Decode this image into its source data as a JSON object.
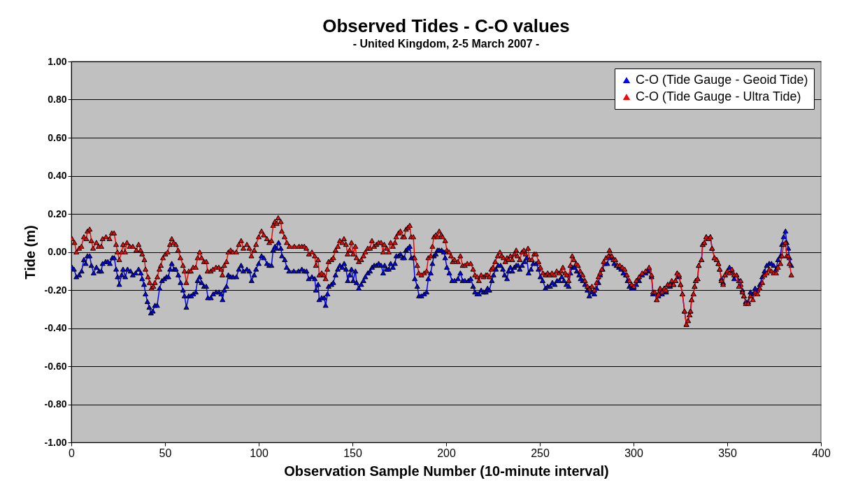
{
  "chart_data": {
    "type": "line",
    "title": "Observed Tides - C-O values",
    "subtitle": "- United Kingdom, 2-5 March 2007 -",
    "xlabel": "Observation Sample Number (10-minute interval)",
    "ylabel": "Tide (m)",
    "xlim": [
      0,
      400
    ],
    "xticks": [
      0,
      50,
      100,
      150,
      200,
      250,
      300,
      350,
      400
    ],
    "ylim": [
      -1,
      1
    ],
    "yticks": [
      {
        "value": -1,
        "label": "-1.00"
      },
      {
        "value": -0.8,
        "label": "-0.80"
      },
      {
        "value": -0.6,
        "label": "-0.60"
      },
      {
        "value": -0.4,
        "label": "-0.40"
      },
      {
        "value": -0.2,
        "label": "-0.20"
      },
      {
        "value": 0,
        "label": "0.00"
      },
      {
        "value": 0.2,
        "label": "0.20"
      },
      {
        "value": 0.4,
        "label": "0.40"
      },
      {
        "value": 0.6,
        "label": "0.60"
      },
      {
        "value": 0.8,
        "label": "0.80"
      },
      {
        "value": 1,
        "label": "1.00"
      }
    ],
    "grid": "y",
    "legend": "top right",
    "marker": "triangle",
    "series": [
      {
        "name": "C-O (Tide Gauge - Geoid Tide)",
        "color": "#0000ff",
        "x": [
          0.4,
          1.4,
          2.7,
          4.2,
          5.5,
          6.7,
          7.7,
          8.6,
          9.8,
          10.7,
          11.9,
          13.4,
          14.8,
          16,
          16.7,
          18.3,
          19.5,
          20.6,
          21.9,
          22.9,
          23.9,
          24.7,
          25.6,
          26.9,
          27.6,
          28.8,
          30,
          31.6,
          32.8,
          34.3,
          35.9,
          37.1,
          37.8,
          38.8,
          39.6,
          40.6,
          41.6,
          42.5,
          43.5,
          44.6,
          45.8,
          47.1,
          48.4,
          49.6,
          50.8,
          51.8,
          52.7,
          53.6,
          54.8,
          55.8,
          57.1,
          58.3,
          59.6,
          60.4,
          61.4,
          62.7,
          63.9,
          65.1,
          66.4,
          67.4,
          68.5,
          69.5,
          70.8,
          72,
          72.9,
          74.5,
          75.7,
          77.2,
          78.8,
          80,
          80.7,
          81.6,
          82.8,
          83.8,
          85.1,
          86.3,
          88.1,
          89.4,
          90.6,
          91.8,
          93.7,
          95,
          96.2,
          97.6,
          98.6,
          100,
          101.5,
          102.7,
          104.4,
          105.6,
          106.8,
          107.7,
          108.7,
          109.6,
          110.6,
          111.8,
          112.4,
          113.9,
          114.9,
          116.2,
          118.7,
          121.2,
          123,
          124.3,
          125.5,
          126.7,
          128.4,
          129.9,
          130.5,
          131.7,
          132.3,
          133.6,
          134.9,
          135.7,
          136.7,
          137.3,
          138.8,
          139.8,
          141,
          142.2,
          143.3,
          144.6,
          145.6,
          146.6,
          147.5,
          148.5,
          149.5,
          150.4,
          151.6,
          152.2,
          153.4,
          154.7,
          155.9,
          156.9,
          158.2,
          159.4,
          160.5,
          161.6,
          162.8,
          164,
          165.3,
          166.4,
          167.2,
          168.3,
          169.4,
          170.4,
          171.6,
          172.7,
          173.4,
          174.6,
          175.6,
          176.9,
          177.7,
          178.6,
          179.6,
          180.6,
          181.4,
          182.5,
          183.3,
          184.6,
          185.5,
          186.8,
          188.3,
          189.6,
          190.5,
          191.8,
          192.7,
          193.5,
          194.5,
          195.4,
          196.3,
          197.6,
          198.8,
          199.5,
          200.4,
          201.7,
          203.2,
          204.5,
          206.3,
          207.6,
          208.8,
          210,
          211.9,
          213.1,
          214.4,
          215.4,
          216.6,
          217.5,
          218.7,
          220,
          221.2,
          222.1,
          223.1,
          224.4,
          225.3,
          226.6,
          227.8,
          229.1,
          230.3,
          231.2,
          232.5,
          233.3,
          234.3,
          235.3,
          236.4,
          237.4,
          238.4,
          239.3,
          240.5,
          241.8,
          243,
          244,
          245.3,
          246.5,
          248,
          249.3,
          250.3,
          251.5,
          253,
          254.2,
          255.5,
          256.7,
          258,
          259.2,
          260.4,
          261.7,
          262.9,
          264.2,
          265.4,
          266.3,
          267.3,
          268.5,
          269.7,
          271,
          271.8,
          272.9,
          274.1,
          275.4,
          276.4,
          277.6,
          279.1,
          280.3,
          281.3,
          282.2,
          283.5,
          284.7,
          286,
          287.2,
          288.4,
          289.7,
          290.9,
          292.2,
          293.4,
          294.6,
          295.9,
          296.8,
          297.8,
          299,
          300.2,
          301.5,
          303,
          304.6,
          306.4,
          307.7,
          308.3,
          309.6,
          310.4,
          311.4,
          312.4,
          313.3,
          314.2,
          315.2,
          316.4,
          317.4,
          318.3,
          319.5,
          320.4,
          321.4,
          322.4,
          323.3,
          324.3,
          325.1,
          326.1,
          327.2,
          328.2,
          329.1,
          329.9,
          330.4,
          331,
          332,
          332.6,
          333.2,
          334.2,
          334.8,
          336.3,
          336.9,
          337.8,
          338.8,
          340,
          341,
          341.9,
          343.2,
          344.4,
          345.3,
          346,
          346.9,
          347.8,
          348.8,
          350,
          351.2,
          352.5,
          353.7,
          355,
          356.2,
          357.2,
          358.1,
          358.9,
          359.9,
          361.2,
          362.4,
          363.7,
          364.9,
          366.2,
          367.4,
          368.7,
          369.9,
          371.1,
          372.4,
          373.6,
          374.8,
          376.1,
          377.1,
          378.4,
          379.2,
          380.1,
          381.1,
          381.7,
          382.6,
          383.2,
          384.2
        ],
        "values": [
          -0.08,
          -0.09,
          -0.13,
          -0.12,
          -0.1,
          -0.04,
          -0.06,
          -0.02,
          -0.02,
          -0.07,
          -0.11,
          -0.08,
          -0.1,
          -0.1,
          -0.06,
          -0.05,
          -0.05,
          -0.06,
          -0.03,
          -0.03,
          -0.09,
          -0.13,
          -0.17,
          -0.12,
          -0.09,
          -0.13,
          -0.09,
          -0.1,
          -0.12,
          -0.11,
          -0.09,
          -0.11,
          -0.14,
          -0.17,
          -0.22,
          -0.26,
          -0.29,
          -0.32,
          -0.31,
          -0.28,
          -0.28,
          -0.19,
          -0.15,
          -0.14,
          -0.13,
          -0.13,
          -0.09,
          -0.06,
          -0.09,
          -0.09,
          -0.12,
          -0.16,
          -0.2,
          -0.23,
          -0.29,
          -0.23,
          -0.23,
          -0.22,
          -0.21,
          -0.15,
          -0.13,
          -0.16,
          -0.18,
          -0.18,
          -0.24,
          -0.24,
          -0.22,
          -0.21,
          -0.21,
          -0.22,
          -0.25,
          -0.2,
          -0.18,
          -0.12,
          -0.13,
          -0.13,
          -0.13,
          -0.09,
          -0.07,
          -0.1,
          -0.09,
          -0.1,
          -0.15,
          -0.12,
          -0.09,
          -0.06,
          -0.02,
          -0.03,
          -0.06,
          -0.07,
          -0.07,
          0.01,
          0.03,
          0.02,
          0.05,
          0.02,
          -0.02,
          -0.04,
          -0.08,
          -0.1,
          -0.1,
          -0.1,
          -0.09,
          -0.1,
          -0.1,
          -0.14,
          -0.13,
          -0.14,
          -0.2,
          -0.17,
          -0.25,
          -0.24,
          -0.24,
          -0.28,
          -0.22,
          -0.18,
          -0.17,
          -0.16,
          -0.12,
          -0.09,
          -0.07,
          -0.08,
          -0.06,
          -0.09,
          -0.15,
          -0.12,
          -0.09,
          -0.15,
          -0.1,
          -0.16,
          -0.19,
          -0.17,
          -0.15,
          -0.13,
          -0.11,
          -0.1,
          -0.08,
          -0.07,
          -0.07,
          -0.06,
          -0.07,
          -0.11,
          -0.07,
          -0.09,
          -0.09,
          -0.06,
          -0.08,
          -0.06,
          -0.02,
          -0.02,
          -0.01,
          -0.03,
          -0.03,
          0.01,
          0.02,
          0.03,
          -0.03,
          -0.03,
          -0.14,
          -0.18,
          -0.23,
          -0.23,
          -0.22,
          -0.21,
          -0.14,
          -0.11,
          -0.06,
          -0.02,
          -0.01,
          0.01,
          0.01,
          0.01,
          0,
          -0.03,
          -0.08,
          -0.11,
          -0.15,
          -0.15,
          -0.14,
          -0.11,
          -0.15,
          -0.15,
          -0.15,
          -0.14,
          -0.18,
          -0.21,
          -0.22,
          -0.22,
          -0.2,
          -0.21,
          -0.21,
          -0.19,
          -0.2,
          -0.15,
          -0.12,
          -0.09,
          -0.07,
          -0.07,
          -0.09,
          -0.12,
          -0.14,
          -0.1,
          -0.08,
          -0.1,
          -0.08,
          -0.07,
          -0.07,
          -0.09,
          -0.07,
          -0.05,
          -0.03,
          -0.11,
          -0.09,
          -0.06,
          -0.06,
          -0.09,
          -0.13,
          -0.15,
          -0.19,
          -0.18,
          -0.18,
          -0.16,
          -0.17,
          -0.15,
          -0.15,
          -0.13,
          -0.15,
          -0.17,
          -0.18,
          -0.11,
          -0.08,
          -0.08,
          -0.1,
          -0.12,
          -0.14,
          -0.15,
          -0.17,
          -0.2,
          -0.23,
          -0.21,
          -0.22,
          -0.19,
          -0.16,
          -0.12,
          -0.09,
          -0.06,
          -0.06,
          -0.02,
          -0.03,
          -0.06,
          -0.07,
          -0.08,
          -0.09,
          -0.11,
          -0.12,
          -0.15,
          -0.18,
          -0.19,
          -0.19,
          -0.17,
          -0.15,
          -0.12,
          -0.11,
          -0.1,
          -0.09,
          -0.13,
          -0.22,
          -0.22,
          -0.25,
          -0.23,
          -0.2,
          -0.22,
          -0.19,
          -0.21,
          -0.17,
          -0.18,
          -0.16,
          -0.17,
          -0.15,
          -0.11,
          -0.13,
          -0.17,
          -0.22,
          -0.31,
          -0.38,
          -0.36,
          -0.33,
          -0.31,
          -0.25,
          -0.22,
          -0.18,
          -0.15,
          -0.14,
          -0.07,
          -0.04,
          0.04,
          0.05,
          0.08,
          0.07,
          0.08,
          0.02,
          -0.03,
          -0.04,
          -0.06,
          -0.09,
          -0.14,
          -0.16,
          -0.12,
          -0.1,
          -0.08,
          -0.1,
          -0.14,
          -0.12,
          -0.15,
          -0.17,
          -0.2,
          -0.23,
          -0.26,
          -0.26,
          -0.21,
          -0.22,
          -0.19,
          -0.2,
          -0.17,
          -0.13,
          -0.1,
          -0.07,
          -0.06,
          -0.06,
          -0.07,
          -0.09,
          -0.04,
          -0.02,
          0.04,
          0.08,
          0.11,
          0.05,
          0.02,
          -0.03,
          -0.07
        ]
      },
      {
        "name": "C-O (Tide Gauge - Ultra Tide)",
        "color": "#ff0000",
        "x": [
          0.4,
          1.7,
          2.7,
          4.2,
          5.4,
          6.7,
          8,
          8.6,
          9.8,
          10.7,
          11.6,
          13.4,
          14.6,
          16,
          16.7,
          18.5,
          20.4,
          21.6,
          22.8,
          23.9,
          24.6,
          25.6,
          26.9,
          27.6,
          28.7,
          29.7,
          31.2,
          32.8,
          34.7,
          35.9,
          37,
          37.8,
          39,
          39.6,
          40.9,
          41.8,
          42.8,
          43.8,
          44.6,
          45.9,
          47,
          47.8,
          48.9,
          50.2,
          51.4,
          52.6,
          53.6,
          54.6,
          55.8,
          57,
          58.2,
          59.6,
          60.4,
          61.4,
          62.7,
          63.8,
          65,
          66.4,
          67.4,
          68.5,
          69.5,
          70.8,
          72,
          72.7,
          74.4,
          75.6,
          77.2,
          78.7,
          80,
          80.6,
          81.6,
          82.8,
          83.8,
          85,
          86.2,
          88,
          89.4,
          90.6,
          91.8,
          93.7,
          95,
          96.1,
          97.6,
          98.6,
          100,
          101.5,
          102.7,
          104.4,
          105.6,
          106.8,
          107.7,
          108.6,
          109.6,
          110.4,
          111.8,
          112.3,
          113.8,
          115,
          116.4,
          119,
          121.5,
          123,
          124.3,
          125.4,
          126.8,
          128.4,
          129.9,
          130.5,
          131.7,
          132.3,
          133.6,
          134.8,
          135.7,
          136.6,
          137.3,
          138.8,
          139.8,
          141,
          142.2,
          143.3,
          144.6,
          145.5,
          146.6,
          147.4,
          148.5,
          149.5,
          150.4,
          151.6,
          152.2,
          153.4,
          154.7,
          155.9,
          156.9,
          158.2,
          159.4,
          160.4,
          161.6,
          162.8,
          164,
          165.3,
          166.4,
          167,
          168.3,
          169.4,
          170.4,
          171.6,
          172.7,
          173.4,
          174.6,
          175.6,
          176.9,
          177.7,
          178.6,
          179.6,
          180.6,
          181.3,
          182.5,
          183.2,
          184.6,
          185.4,
          186.8,
          188.3,
          189.6,
          190.5,
          191.8,
          192.7,
          193.5,
          194.5,
          195.4,
          196.3,
          197.5,
          198.1,
          199.5,
          200.4,
          201.6,
          202.6,
          203.5,
          204.5,
          206.3,
          207.6,
          208.8,
          210,
          211.3,
          213.1,
          214.4,
          215.4,
          216.6,
          217.5,
          218.7,
          220,
          221.2,
          222.1,
          223.1,
          224.1,
          225,
          226.2,
          227.5,
          228.7,
          229.6,
          230.6,
          231.6,
          232.5,
          233.3,
          234.3,
          235.3,
          236.4,
          237.4,
          238,
          239.3,
          240.5,
          241.5,
          242.4,
          243.7,
          244.5,
          245.8,
          247,
          248,
          249.3,
          250.3,
          251.7,
          253,
          254.2,
          255.2,
          256.5,
          257.7,
          259,
          260.2,
          261.4,
          262.3,
          263.6,
          264.4,
          265.4,
          266.3,
          267.3,
          268.2,
          269.4,
          270.4,
          271.6,
          272.9,
          274.1,
          275.4,
          276.6,
          277.8,
          279.1,
          280.3,
          281.3,
          282.2,
          283.1,
          284.1,
          285.3,
          286.6,
          287.2,
          288.4,
          289.3,
          290.3,
          291.5,
          292.7,
          294,
          295.3,
          296.5,
          297.8,
          299,
          300.2,
          301.5,
          303,
          304.6,
          306.4,
          308.3,
          309.6,
          310.4,
          311.4,
          312.4,
          313.3,
          314.2,
          315.2,
          316.4,
          317.4,
          318.3,
          319.5,
          320.4,
          321.4,
          322.4,
          323.3,
          324.3,
          325.1,
          326.1,
          327.2,
          328.2,
          329.1,
          329.9,
          330.4,
          331,
          332,
          332.6,
          333.2,
          334.2,
          334.8,
          336.3,
          336.9,
          337.8,
          338.8,
          340,
          341,
          341.9,
          343.2,
          344.4,
          345.3,
          346,
          346.9,
          347.8,
          348.8,
          350,
          351.2,
          352.5,
          353.7,
          355,
          356.2,
          357.2,
          358.1,
          358.9,
          359.9,
          361.2,
          362.4,
          363.7,
          364.9,
          366.2,
          367.4,
          368.7,
          369.9,
          371.1,
          372.4,
          373.6,
          374.8,
          376.1,
          377.1,
          378.4,
          379.2,
          380.1,
          381.1,
          381.7,
          382.6,
          383.2,
          384.2
        ],
        "values": [
          0.07,
          0.05,
          0,
          0.02,
          0.03,
          0.08,
          0.07,
          0.11,
          0.12,
          0.06,
          0.02,
          0.05,
          0.03,
          0.03,
          0.07,
          0.08,
          0.07,
          0.1,
          0.1,
          0.04,
          0,
          -0.04,
          0,
          0.04,
          0,
          0.05,
          0.03,
          0.03,
          0.01,
          0.04,
          0.01,
          -0.01,
          -0.04,
          -0.09,
          -0.13,
          -0.16,
          -0.19,
          -0.18,
          -0.16,
          -0.13,
          -0.09,
          -0.07,
          -0.03,
          -0.01,
          0,
          0.04,
          0.07,
          0.05,
          0.04,
          0.01,
          -0.03,
          -0.07,
          -0.1,
          -0.16,
          -0.1,
          -0.1,
          -0.08,
          -0.08,
          -0.03,
          0,
          -0.03,
          -0.05,
          -0.05,
          -0.1,
          -0.1,
          -0.09,
          -0.08,
          -0.08,
          -0.09,
          -0.12,
          -0.07,
          -0.05,
          0,
          0.01,
          0,
          0,
          0.04,
          0.06,
          0.02,
          0.04,
          0.02,
          -0.02,
          0.01,
          0.04,
          0.08,
          0.11,
          0.09,
          0.07,
          0.05,
          0.06,
          0.14,
          0.16,
          0.15,
          0.18,
          0.16,
          0.11,
          0.08,
          0.05,
          0.03,
          0.03,
          0.03,
          0.03,
          0.03,
          0.02,
          -0.01,
          0,
          -0.02,
          -0.07,
          -0.04,
          -0.12,
          -0.11,
          -0.12,
          -0.14,
          -0.09,
          -0.05,
          -0.04,
          -0.03,
          0.01,
          0.03,
          0.06,
          0.05,
          0.07,
          0.04,
          -0.01,
          0.01,
          0.05,
          -0.01,
          0.03,
          -0.03,
          -0.05,
          -0.04,
          -0.02,
          0,
          0.02,
          0.02,
          0.06,
          0.03,
          0.04,
          0.05,
          0.05,
          0,
          0.04,
          0.02,
          0,
          0.05,
          0.03,
          0.05,
          0.08,
          0.1,
          0.11,
          0.08,
          0.08,
          0.12,
          0.13,
          0.14,
          0.08,
          0.08,
          -0.03,
          -0.07,
          -0.11,
          -0.12,
          -0.11,
          -0.1,
          -0.03,
          -0.02,
          0.03,
          0.08,
          0.09,
          0.08,
          0.11,
          0.09,
          0.08,
          0.06,
          0.01,
          0,
          -0.02,
          -0.05,
          -0.04,
          -0.05,
          -0.02,
          -0.07,
          -0.07,
          -0.06,
          -0.06,
          -0.09,
          -0.12,
          -0.13,
          -0.15,
          -0.12,
          -0.13,
          -0.12,
          -0.12,
          -0.13,
          -0.09,
          -0.08,
          -0.05,
          -0.02,
          0,
          -0.02,
          -0.03,
          -0.05,
          -0.03,
          -0.04,
          -0.02,
          -0.04,
          -0.01,
          0.01,
          -0.02,
          -0.04,
          0,
          0.01,
          -0.01,
          0.02,
          -0.04,
          -0.04,
          -0.01,
          -0.01,
          -0.05,
          -0.08,
          -0.11,
          -0.12,
          -0.11,
          -0.12,
          -0.11,
          -0.12,
          -0.1,
          -0.11,
          -0.1,
          -0.08,
          -0.11,
          -0.12,
          -0.15,
          -0.07,
          -0.02,
          -0.04,
          -0.06,
          -0.07,
          -0.1,
          -0.12,
          -0.15,
          -0.18,
          -0.19,
          -0.18,
          -0.2,
          -0.16,
          -0.13,
          -0.11,
          -0.09,
          -0.05,
          -0.03,
          -0.02,
          0.01,
          -0.02,
          -0.04,
          -0.04,
          -0.07,
          -0.07,
          -0.08,
          -0.09,
          -0.12,
          -0.15,
          -0.17,
          -0.18,
          -0.15,
          -0.13,
          -0.11,
          -0.1,
          -0.08,
          -0.12,
          -0.21,
          -0.21,
          -0.25,
          -0.22,
          -0.19,
          -0.21,
          -0.19,
          -0.2,
          -0.17,
          -0.17,
          -0.15,
          -0.17,
          -0.15,
          -0.11,
          -0.12,
          -0.17,
          -0.22,
          -0.31,
          -0.38,
          -0.36,
          -0.33,
          -0.31,
          -0.25,
          -0.22,
          -0.18,
          -0.15,
          -0.14,
          -0.07,
          -0.04,
          0.04,
          0.05,
          0.08,
          0.07,
          0.08,
          0.02,
          -0.03,
          -0.04,
          -0.06,
          -0.09,
          -0.15,
          -0.17,
          -0.12,
          -0.1,
          -0.11,
          -0.09,
          -0.12,
          -0.12,
          -0.18,
          -0.15,
          -0.21,
          -0.23,
          -0.27,
          -0.27,
          -0.23,
          -0.25,
          -0.21,
          -0.22,
          -0.19,
          -0.16,
          -0.12,
          -0.11,
          -0.09,
          -0.1,
          -0.11,
          -0.11,
          -0.08,
          -0.06,
          -0.02,
          0.04,
          0.05,
          -0.02,
          -0.02,
          -0.06,
          -0.12
        ]
      }
    ]
  }
}
